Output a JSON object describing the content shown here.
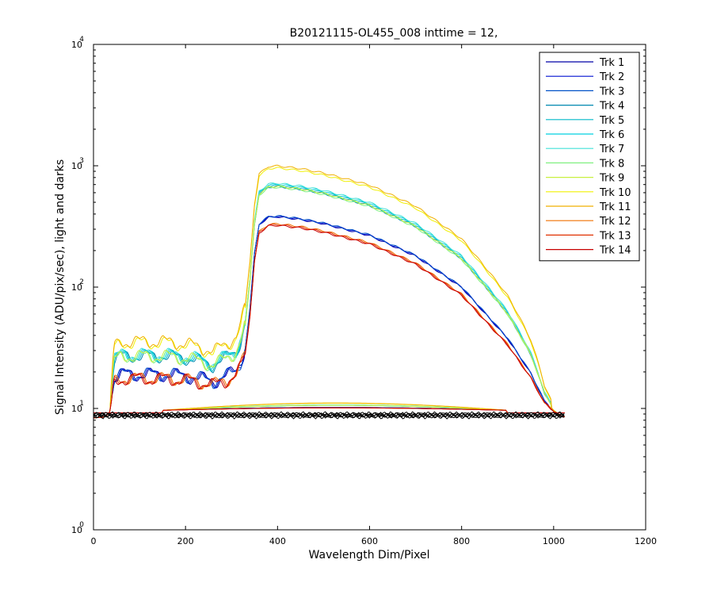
{
  "chart_data": {
    "type": "line",
    "title": "B20121115-OL455_008 inttime = 12,",
    "xlabel": "Wavelength Dim/Pixel",
    "ylabel": "Signal Intensity (ADU/pix/sec), light and darks",
    "xlim": [
      0,
      1200
    ],
    "ylim_log10": [
      0,
      4
    ],
    "yscale": "log",
    "x_ticks": [
      "0",
      "200",
      "400",
      "600",
      "800",
      "1000",
      "1200"
    ],
    "y_ticks": [
      {
        "base": "10",
        "exp": "0"
      },
      {
        "base": "10",
        "exp": "1"
      },
      {
        "base": "10",
        "exp": "2"
      },
      {
        "base": "10",
        "exp": "3"
      },
      {
        "base": "10",
        "exp": "4"
      }
    ],
    "legend_position": "top-right",
    "grid": false,
    "profile_x": [
      0,
      20,
      35,
      45,
      60,
      100,
      150,
      200,
      250,
      260,
      290,
      310,
      320,
      330,
      340,
      350,
      360,
      380,
      400,
      420,
      450,
      500,
      600,
      700,
      800,
      900,
      950,
      980,
      1000,
      1010,
      1020
    ],
    "profile_y_norm": [
      0.92,
      0.93,
      1.0,
      1.92,
      2.05,
      2.05,
      2.05,
      2.0,
      1.85,
      1.8,
      2.0,
      2.2,
      2.6,
      3.4,
      7.0,
      20.0,
      34.5,
      39.5,
      40.0,
      39.2,
      38.0,
      35.0,
      28.0,
      19.0,
      10.5,
      4.0,
      2.1,
      1.25,
      1.05,
      0.98,
      0.94
    ],
    "dark_level": 8.8,
    "series": [
      {
        "name": "Trk 1",
        "peak": 390,
        "color": "#0000a8"
      },
      {
        "name": "Trk 2",
        "peak": 393,
        "color": "#0010d0"
      },
      {
        "name": "Trk 3",
        "peak": 396,
        "color": "#0050c8"
      },
      {
        "name": "Trk 4",
        "peak": 700,
        "color": "#0088b0"
      },
      {
        "name": "Trk 5",
        "peak": 715,
        "color": "#00b8c8"
      },
      {
        "name": "Trk 6",
        "peak": 730,
        "color": "#00d0e0"
      },
      {
        "name": "Trk 7",
        "peak": 745,
        "color": "#40e0d8"
      },
      {
        "name": "Trk 8",
        "peak": 690,
        "color": "#80f080"
      },
      {
        "name": "Trk 9",
        "peak": 705,
        "color": "#c8f040"
      },
      {
        "name": "Trk 10",
        "peak": 1000,
        "color": "#f0f000"
      },
      {
        "name": "Trk 11",
        "peak": 1040,
        "color": "#f0b000"
      },
      {
        "name": "Trk 12",
        "peak": 340,
        "color": "#f07000"
      },
      {
        "name": "Trk 13",
        "peak": 335,
        "color": "#e03000"
      },
      {
        "name": "Trk 14",
        "peak": 330,
        "color": "#c80000"
      }
    ]
  }
}
